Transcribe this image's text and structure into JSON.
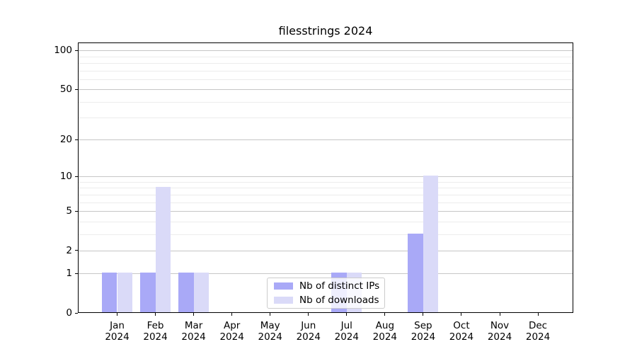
{
  "chart_data": {
    "type": "bar",
    "title": "filesstrings 2024",
    "categories": [
      "Jan",
      "Feb",
      "Mar",
      "Apr",
      "May",
      "Jun",
      "Jul",
      "Aug",
      "Sep",
      "Oct",
      "Nov",
      "Dec"
    ],
    "category_year": "2024",
    "series": [
      {
        "name": "Nb of distinct IPs",
        "color": "#a9a9f7",
        "values": [
          1,
          1,
          1,
          0,
          0,
          0,
          1,
          0,
          3,
          0,
          0,
          0
        ]
      },
      {
        "name": "Nb of downloads",
        "color": "#dadaf8",
        "values": [
          1,
          8,
          1,
          0,
          0,
          0,
          1,
          0,
          10,
          0,
          0,
          0
        ]
      }
    ],
    "yscale": "log1p (y position ~ log10(1+value))",
    "ytick_labels": [
      0,
      1,
      2,
      5,
      10,
      20,
      50,
      100
    ],
    "minor_grid_values": [
      3,
      4,
      6,
      7,
      8,
      9,
      30,
      40,
      60,
      70,
      80,
      90
    ],
    "ylim": [
      0,
      113
    ],
    "grid": "horizontal, major and minor",
    "legend": {
      "position": "bottom-center",
      "entries": [
        "Nb of distinct IPs",
        "Nb of downloads"
      ]
    }
  },
  "style": {
    "background": "#ffffff",
    "axis_color": "#000000",
    "major_grid_color": "#c6c6c6",
    "minor_grid_color": "#ececec",
    "legend_border_color": "#cccccc",
    "text_color": "#000000"
  }
}
